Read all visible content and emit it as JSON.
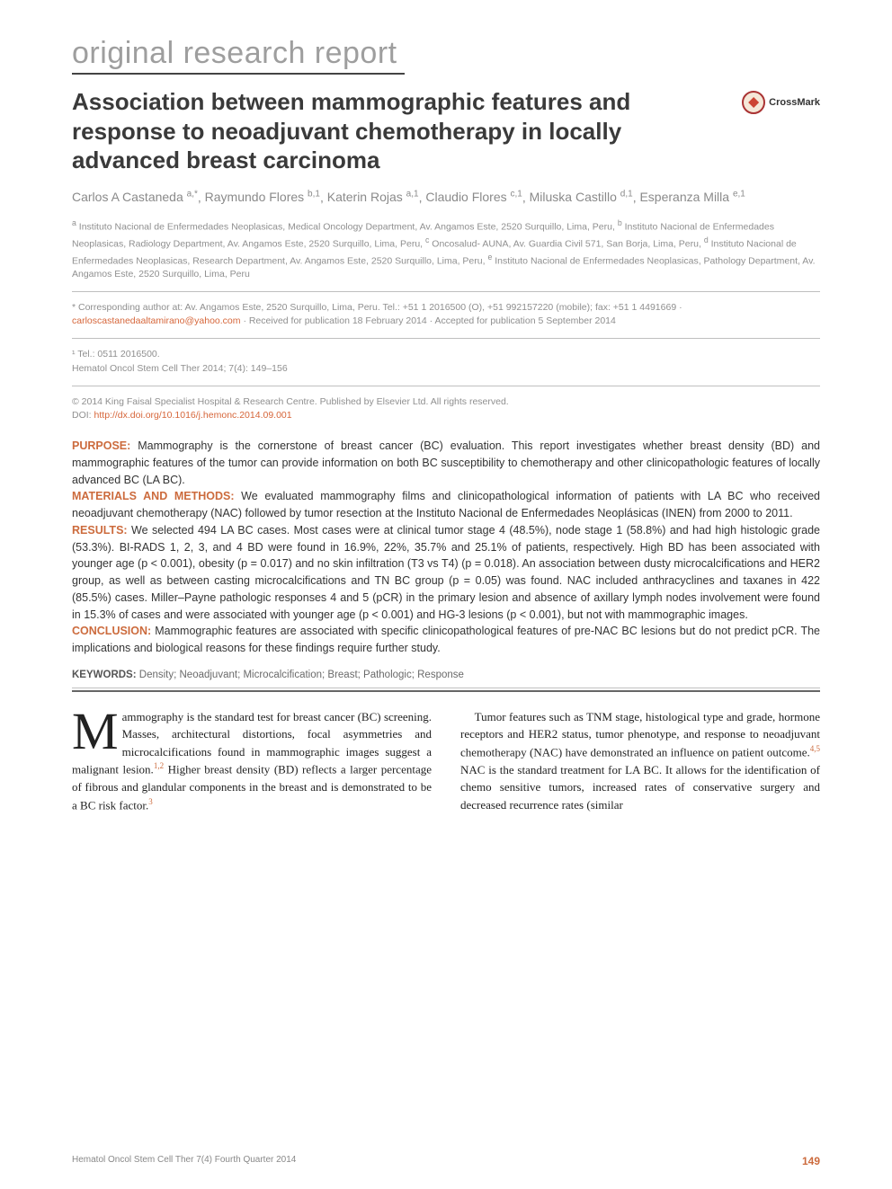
{
  "category": "original research report",
  "title": "Association between mammographic features and response to neoadjuvant chemotherapy in locally advanced breast carcinoma",
  "crossmark_label": "CrossMark",
  "authors": [
    {
      "name": "Carlos A Castaneda",
      "marks": "a,*"
    },
    {
      "name": "Raymundo Flores",
      "marks": "b,1"
    },
    {
      "name": "Katerin Rojas",
      "marks": "a,1"
    },
    {
      "name": "Claudio Flores",
      "marks": "c,1"
    },
    {
      "name": "Miluska Castillo",
      "marks": "d,1"
    },
    {
      "name": "Esperanza Milla",
      "marks": "e,1"
    }
  ],
  "affiliations": {
    "a": "Instituto Nacional de Enfermedades Neoplasicas, Medical Oncology Department, Av. Angamos Este, 2520 Surquillo, Lima, Peru,",
    "b": "Instituto Nacional de Enfermedades Neoplasicas, Radiology Department, Av. Angamos Este, 2520 Surquillo, Lima, Peru,",
    "c": "Oncosalud- AUNA, Av. Guardia Civil 571, San Borja, Lima, Peru,",
    "d": "Instituto Nacional de Enfermedades Neoplasicas, Research Department, Av. Angamos Este, 2520 Surquillo, Lima, Peru,",
    "e": "Instituto Nacional de Enfermedades Neoplasicas, Pathology Department, Av. Angamos Este, 2520 Surquillo, Lima, Peru"
  },
  "correspondence": {
    "prefix": "* Corresponding author at: Av. Angamos Este, 2520 Surquillo, Lima, Peru. Tel.: +51 1 2016500 (O), +51 992157220 (mobile); fax: +51 1 4491669 · ",
    "email": "carloscastanedaaltamirano@yahoo.com",
    "suffix": " · Received for publication 18 February 2014 · Accepted for publication 5 September 2014"
  },
  "tel_note": "¹ Tel.: 0511 2016500.",
  "citation": "Hematol Oncol Stem Cell Ther 2014; 7(4): 149–156",
  "copyright": {
    "text": "© 2014 King Faisal Specialist Hospital & Research Centre. Published by Elsevier Ltd. All rights reserved.",
    "doi_label": "DOI: ",
    "doi": "http://dx.doi.org/10.1016/j.hemonc.2014.09.001"
  },
  "abstract": {
    "purpose": {
      "label": "PURPOSE:",
      "text": " Mammography is the cornerstone of breast cancer (BC) evaluation. This report investigates whether breast density (BD) and mammographic features of the tumor can provide information on both BC susceptibility to chemotherapy and other clinicopathologic features of locally advanced BC (LA BC)."
    },
    "methods": {
      "label": "MATERIALS AND METHODS:",
      "text": " We evaluated mammography films and clinicopathological information of patients with LA BC who received neoadjuvant chemotherapy (NAC) followed by tumor resection at the Instituto Nacional de Enfermedades Neoplásicas (INEN) from 2000 to 2011."
    },
    "results": {
      "label": "RESULTS:",
      "text": " We selected 494 LA BC cases. Most cases were at clinical tumor stage 4 (48.5%), node stage 1 (58.8%) and had high histologic grade (53.3%). BI-RADS 1, 2, 3, and 4 BD were found in 16.9%, 22%, 35.7% and 25.1% of patients, respectively. High BD has been associated with younger age (p < 0.001), obesity (p = 0.017) and no skin infiltration (T3 vs T4) (p = 0.018). An association between dusty microcalcifications and HER2 group, as well as between casting microcalcifications and TN BC group (p = 0.05) was found. NAC included anthracyclines and taxanes in 422 (85.5%) cases. Miller–Payne pathologic responses 4 and 5 (pCR) in the primary lesion and absence of axillary lymph nodes involvement were found in 15.3% of cases and were associated with younger age (p < 0.001) and HG-3 lesions (p < 0.001), but not with mammographic images."
    },
    "conclusion": {
      "label": "CONCLUSION:",
      "text": " Mammographic features are associated with specific clinicopathological features of pre-NAC BC lesions but do not predict pCR. The implications and biological reasons for these findings require further study."
    }
  },
  "keywords": {
    "label": "KEYWORDS:",
    "text": " Density; Neoadjuvant; Microcalcification; Breast; Pathologic; Response"
  },
  "body": {
    "col1": {
      "dropcap": "M",
      "text_part1": "ammography is the standard test for breast cancer (BC) screening. Masses, architectural distortions, focal asymmetries and microcalcifications found in mammographic images suggest a malignant lesion.",
      "ref1": "1,2",
      "text_part2": " Higher breast density (BD) reflects a larger percentage of fibrous and glandular components in the breast and is demonstrated to be a BC risk factor.",
      "ref2": "3"
    },
    "col2": {
      "text_part1": "Tumor features such as TNM stage, histological type and grade, hormone receptors and HER2 status, tumor phenotype, and response to neoadjuvant chemotherapy (NAC) have demonstrated an influence on patient outcome.",
      "ref1": "4,5",
      "text_part2": " NAC is the standard treatment for LA BC. It allows for the identification of chemo sensitive tumors, increased rates of conservative surgery and decreased recurrence rates (similar"
    }
  },
  "footer": {
    "left": "Hematol Oncol Stem Cell Ther 7(4)     Fourth Quarter 2014",
    "page": "149"
  },
  "colors": {
    "category_gray": "#9e9e9e",
    "title_gray": "#3a3a3a",
    "accent_orange": "#cc6b3d",
    "meta_gray": "#8f8f8f",
    "body_text": "#222222"
  }
}
